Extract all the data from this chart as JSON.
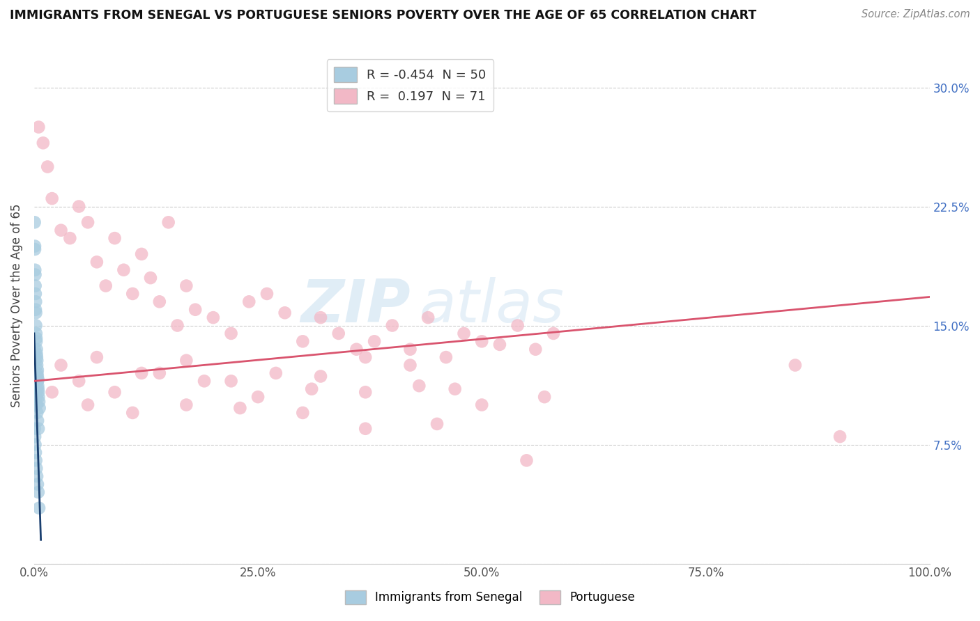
{
  "title": "IMMIGRANTS FROM SENEGAL VS PORTUGUESE SENIORS POVERTY OVER THE AGE OF 65 CORRELATION CHART",
  "source": "Source: ZipAtlas.com",
  "ylabel": "Seniors Poverty Over the Age of 65",
  "watermark_zip": "ZIP",
  "watermark_atlas": "atlas",
  "xlim": [
    0,
    100
  ],
  "ylim": [
    0,
    32.5
  ],
  "yticks": [
    0,
    7.5,
    15.0,
    22.5,
    30.0
  ],
  "xticks": [
    0,
    25,
    50,
    75,
    100
  ],
  "xtick_labels": [
    "0.0%",
    "25.0%",
    "50.0%",
    "75.0%",
    "100.0%"
  ],
  "ytick_right_labels": [
    "",
    "7.5%",
    "15.0%",
    "22.5%",
    "30.0%"
  ],
  "blue_color": "#a8cce0",
  "pink_color": "#f2b8c6",
  "blue_line_color": "#1a3f6f",
  "pink_line_color": "#d9546e",
  "R_blue": -0.454,
  "N_blue": 50,
  "R_pink": 0.197,
  "N_pink": 71,
  "legend_R_color": "#e05c00",
  "legend_N_color": "#4472c4",
  "blue_scatter_x": [
    0.05,
    0.08,
    0.12,
    0.15,
    0.18,
    0.2,
    0.22,
    0.25,
    0.28,
    0.3,
    0.32,
    0.35,
    0.38,
    0.4,
    0.42,
    0.45,
    0.48,
    0.5,
    0.55,
    0.6,
    0.08,
    0.1,
    0.13,
    0.16,
    0.2,
    0.24,
    0.28,
    0.33,
    0.38,
    0.44,
    0.05,
    0.07,
    0.1,
    0.14,
    0.18,
    0.22,
    0.27,
    0.33,
    0.4,
    0.48,
    0.06,
    0.09,
    0.12,
    0.16,
    0.21,
    0.26,
    0.32,
    0.39,
    0.46,
    0.55
  ],
  "blue_scatter_y": [
    21.5,
    19.8,
    18.2,
    17.0,
    16.5,
    15.8,
    14.5,
    14.0,
    13.5,
    13.0,
    12.5,
    12.0,
    11.8,
    11.5,
    11.2,
    11.0,
    10.8,
    10.5,
    10.2,
    9.8,
    20.0,
    18.5,
    17.5,
    16.0,
    15.0,
    14.2,
    13.2,
    12.8,
    12.2,
    11.6,
    13.5,
    12.8,
    12.0,
    11.5,
    11.0,
    10.5,
    10.0,
    9.5,
    9.0,
    8.5,
    8.5,
    8.0,
    7.5,
    7.0,
    6.5,
    6.0,
    5.5,
    5.0,
    4.5,
    3.5
  ],
  "pink_scatter_x": [
    0.5,
    1.0,
    1.5,
    2.0,
    3.0,
    4.0,
    5.0,
    6.0,
    7.0,
    8.0,
    9.0,
    10.0,
    11.0,
    12.0,
    13.0,
    14.0,
    15.0,
    16.0,
    17.0,
    18.0,
    20.0,
    22.0,
    24.0,
    26.0,
    28.0,
    30.0,
    32.0,
    34.0,
    36.0,
    38.0,
    40.0,
    42.0,
    44.0,
    46.0,
    48.0,
    50.0,
    52.0,
    54.0,
    56.0,
    58.0,
    3.0,
    7.0,
    12.0,
    17.0,
    22.0,
    27.0,
    32.0,
    37.0,
    42.0,
    47.0,
    5.0,
    9.0,
    14.0,
    19.0,
    25.0,
    31.0,
    37.0,
    43.0,
    50.0,
    57.0,
    2.0,
    6.0,
    11.0,
    17.0,
    23.0,
    30.0,
    37.0,
    45.0,
    55.0,
    85.0,
    90.0
  ],
  "pink_scatter_y": [
    27.5,
    26.5,
    25.0,
    23.0,
    21.0,
    20.5,
    22.5,
    21.5,
    19.0,
    17.5,
    20.5,
    18.5,
    17.0,
    19.5,
    18.0,
    16.5,
    21.5,
    15.0,
    17.5,
    16.0,
    15.5,
    14.5,
    16.5,
    17.0,
    15.8,
    14.0,
    15.5,
    14.5,
    13.5,
    14.0,
    15.0,
    13.5,
    15.5,
    13.0,
    14.5,
    14.0,
    13.8,
    15.0,
    13.5,
    14.5,
    12.5,
    13.0,
    12.0,
    12.8,
    11.5,
    12.0,
    11.8,
    13.0,
    12.5,
    11.0,
    11.5,
    10.8,
    12.0,
    11.5,
    10.5,
    11.0,
    10.8,
    11.2,
    10.0,
    10.5,
    10.8,
    10.0,
    9.5,
    10.0,
    9.8,
    9.5,
    8.5,
    8.8,
    6.5,
    12.5,
    8.0
  ],
  "blue_line_x": [
    0.0,
    0.75
  ],
  "blue_line_y": [
    14.5,
    1.5
  ],
  "pink_line_x": [
    0.0,
    100.0
  ],
  "pink_line_y": [
    11.5,
    16.8
  ]
}
